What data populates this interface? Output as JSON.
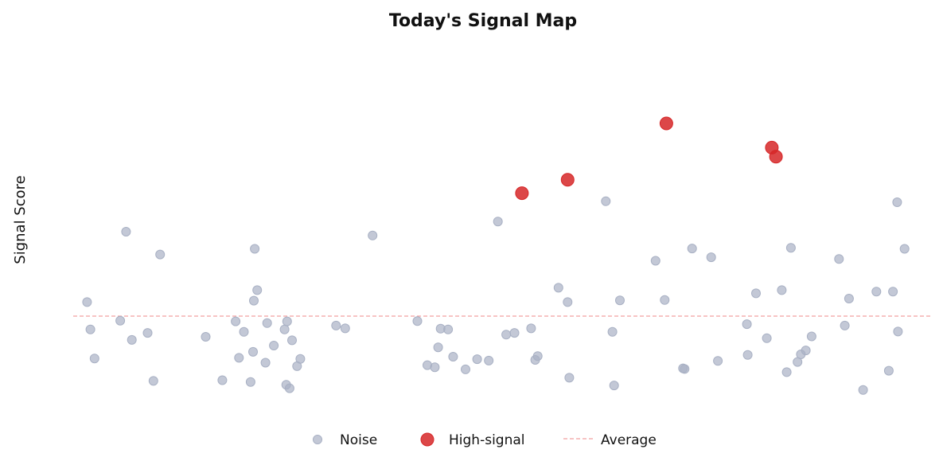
{
  "chart_data": {
    "type": "scatter",
    "title": "Today's Signal Map",
    "xlabel": "",
    "ylabel": "Signal Score",
    "xlim": [
      0,
      100
    ],
    "ylim": [
      -2,
      8
    ],
    "grid": false,
    "legend_position": "bottom-center",
    "average": 0,
    "series": [
      {
        "name": "Noise",
        "color": "#a9b1c4",
        "points": [
          [
            0.9,
            0.4
          ],
          [
            1.3,
            -0.38
          ],
          [
            1.8,
            -1.21
          ],
          [
            4.9,
            -0.13
          ],
          [
            5.6,
            2.41
          ],
          [
            6.3,
            -0.68
          ],
          [
            8.2,
            -0.48
          ],
          [
            8.9,
            -1.85
          ],
          [
            9.7,
            1.76
          ],
          [
            15.2,
            -0.59
          ],
          [
            17.2,
            -1.83
          ],
          [
            18.8,
            -0.15
          ],
          [
            19.2,
            -1.19
          ],
          [
            19.8,
            -0.45
          ],
          [
            20.6,
            -1.88
          ],
          [
            20.9,
            -1.02
          ],
          [
            21.0,
            0.44
          ],
          [
            21.1,
            1.92
          ],
          [
            21.4,
            0.74
          ],
          [
            22.4,
            -1.33
          ],
          [
            22.6,
            -0.2
          ],
          [
            23.4,
            -0.84
          ],
          [
            24.7,
            -0.38
          ],
          [
            24.9,
            -1.96
          ],
          [
            25.0,
            -0.15
          ],
          [
            25.3,
            -2.06
          ],
          [
            25.6,
            -0.69
          ],
          [
            26.2,
            -1.43
          ],
          [
            26.6,
            -1.22
          ],
          [
            30.9,
            -0.27
          ],
          [
            32.0,
            -0.35
          ],
          [
            35.3,
            2.3
          ],
          [
            40.7,
            -0.14
          ],
          [
            41.9,
            -1.4
          ],
          [
            42.8,
            -1.46
          ],
          [
            43.2,
            -0.89
          ],
          [
            43.5,
            -0.36
          ],
          [
            44.4,
            -0.38
          ],
          [
            45.0,
            -1.16
          ],
          [
            46.5,
            -1.52
          ],
          [
            47.9,
            -1.23
          ],
          [
            49.3,
            -1.27
          ],
          [
            50.4,
            2.7
          ],
          [
            51.4,
            -0.53
          ],
          [
            52.4,
            -0.48
          ],
          [
            54.4,
            -0.35
          ],
          [
            54.9,
            -1.25
          ],
          [
            55.2,
            -1.14
          ],
          [
            57.7,
            0.81
          ],
          [
            58.8,
            0.4
          ],
          [
            59.0,
            -1.76
          ],
          [
            63.4,
            3.28
          ],
          [
            64.2,
            -0.45
          ],
          [
            64.4,
            -1.98
          ],
          [
            65.1,
            0.45
          ],
          [
            69.4,
            1.58
          ],
          [
            70.5,
            0.46
          ],
          [
            72.7,
            -1.49
          ],
          [
            72.9,
            -1.51
          ],
          [
            73.8,
            1.93
          ],
          [
            76.1,
            1.68
          ],
          [
            76.9,
            -1.28
          ],
          [
            80.4,
            -0.23
          ],
          [
            80.5,
            -1.11
          ],
          [
            81.5,
            0.65
          ],
          [
            82.8,
            -0.63
          ],
          [
            84.6,
            0.74
          ],
          [
            85.2,
            -1.6
          ],
          [
            85.7,
            1.95
          ],
          [
            86.5,
            -1.31
          ],
          [
            86.9,
            -1.09
          ],
          [
            87.5,
            -0.98
          ],
          [
            88.2,
            -0.58
          ],
          [
            91.5,
            1.63
          ],
          [
            92.2,
            -0.27
          ],
          [
            92.7,
            0.5
          ],
          [
            94.4,
            -2.11
          ],
          [
            96.0,
            0.7
          ],
          [
            97.5,
            -1.56
          ],
          [
            98.0,
            0.7
          ],
          [
            98.5,
            3.25
          ],
          [
            98.6,
            -0.44
          ],
          [
            99.4,
            1.92
          ]
        ]
      },
      {
        "name": "High-signal",
        "color": "#d62728",
        "points": [
          [
            53.3,
            3.51
          ],
          [
            58.8,
            3.89
          ],
          [
            70.7,
            5.5
          ],
          [
            83.4,
            4.81
          ],
          [
            83.9,
            4.55
          ]
        ]
      }
    ],
    "legend": [
      {
        "label": "Noise",
        "marker": "circle-small",
        "color": "#a9b1c4"
      },
      {
        "label": "High-signal",
        "marker": "circle-large",
        "color": "#d62728"
      },
      {
        "label": "Average",
        "marker": "dashed-line",
        "color": "#f2a0a0"
      }
    ]
  }
}
